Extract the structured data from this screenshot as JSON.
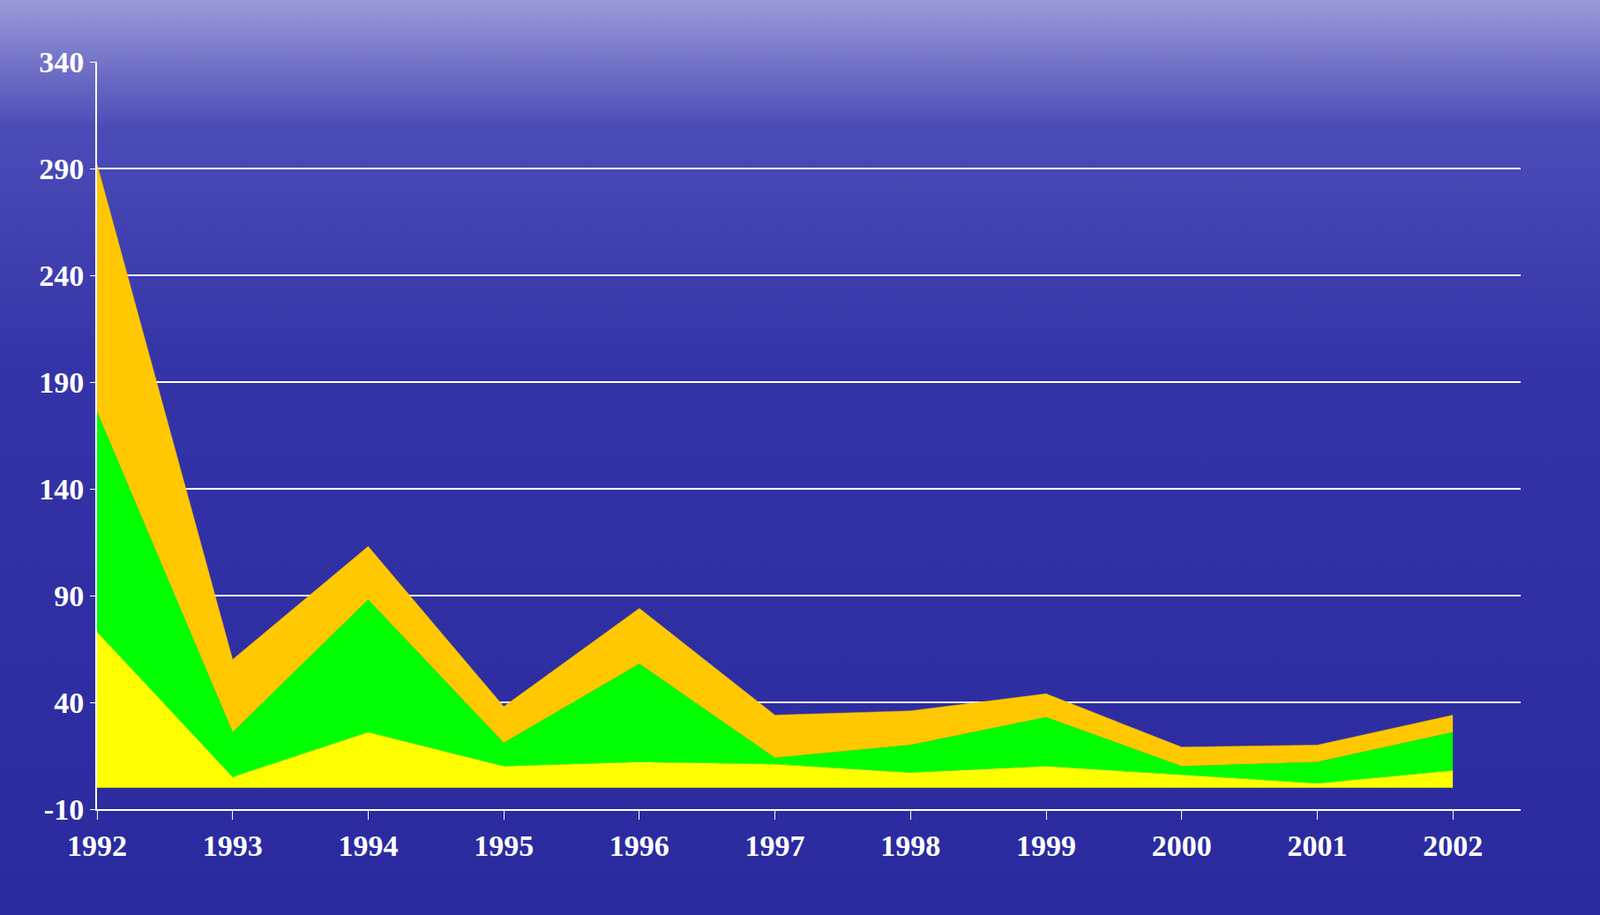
{
  "chart_data": {
    "type": "area",
    "stacked": true,
    "grid": true,
    "categories": [
      "1992",
      "1993",
      "1994",
      "1995",
      "1996",
      "1997",
      "1998",
      "1999",
      "2000",
      "2001",
      "2002"
    ],
    "series": [
      {
        "color": "#ffff00",
        "values": [
          73,
          5,
          26,
          10,
          12,
          11,
          7,
          10,
          6,
          2,
          8
        ]
      },
      {
        "color": "#00ff00",
        "values": [
          103,
          21,
          62,
          11,
          46,
          3,
          13,
          23,
          4,
          10,
          18
        ]
      },
      {
        "color": "#ffc800",
        "values": [
          116,
          34,
          25,
          17,
          26,
          20,
          16,
          11,
          9,
          8,
          8
        ]
      }
    ],
    "ylim": [
      -10,
      340
    ],
    "yticks": [
      -10,
      40,
      90,
      140,
      190,
      240,
      290,
      340
    ]
  }
}
